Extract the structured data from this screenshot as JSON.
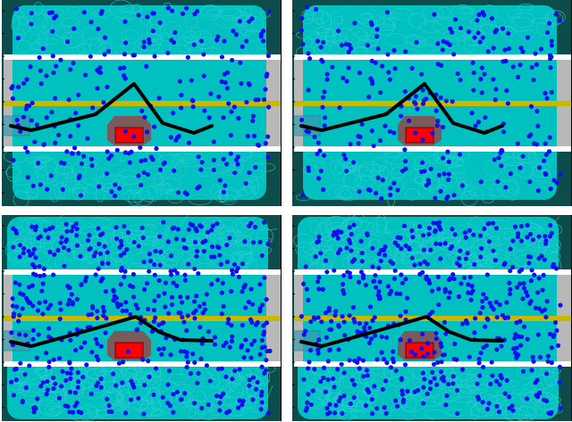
{
  "colors": {
    "background": "#0c4d4b",
    "free_space": "#00c0c0",
    "tree_edges": "#30d0d0",
    "lane_marking": "#ffffff",
    "centerline": "#c8b800",
    "road_edge": "#b8b8b8",
    "samples": "#1010ee",
    "path": "#000000",
    "obstacle_inflated": "#7a5a5a",
    "obstacle_shadow": "#f08080",
    "obstacle": "#ff0000",
    "start_region": "#3a9ab0"
  },
  "panels": [
    {
      "name": "top-left",
      "variant": "sparse"
    },
    {
      "name": "top-right",
      "variant": "sparse"
    },
    {
      "name": "bottom-left",
      "variant": "dense"
    },
    {
      "name": "bottom-right",
      "variant": "dense"
    }
  ]
}
